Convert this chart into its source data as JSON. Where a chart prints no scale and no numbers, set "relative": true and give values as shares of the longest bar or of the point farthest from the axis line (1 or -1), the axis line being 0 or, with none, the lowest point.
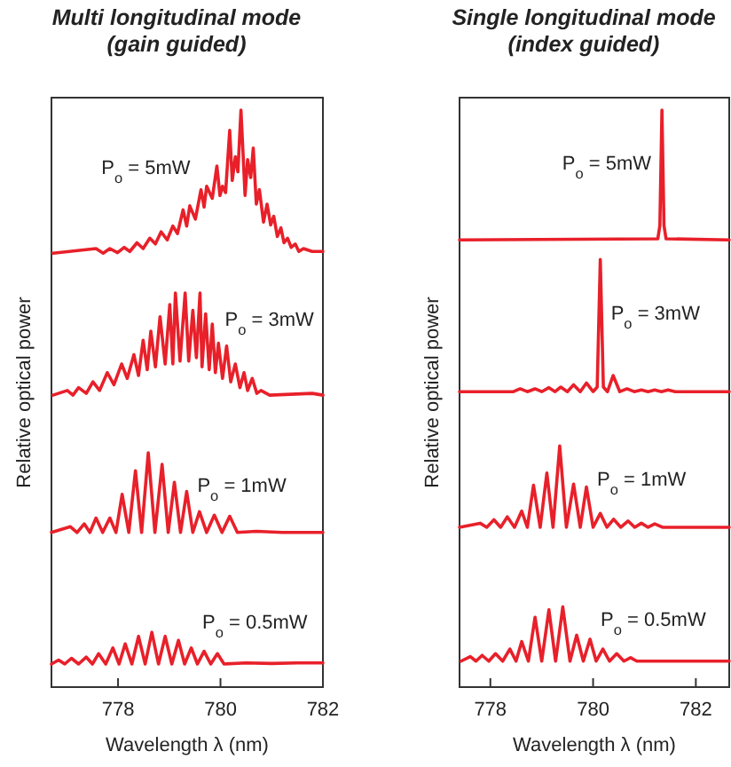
{
  "chart_data": [
    {
      "type": "line",
      "title": "Multi longitudinal mode\n(gain guided)",
      "xlabel": "Wavelength λ (nm)",
      "ylabel": "Relative optical power",
      "relative": true,
      "xlim": [
        776.7,
        782
      ],
      "xticks": [
        778,
        780,
        782
      ],
      "series": [
        {
          "name": "P$_{o}$ = 5mW",
          "color": "#e8202a",
          "x": [
            776.73,
            777.57,
            777.71,
            777.84,
            777.99,
            778.12,
            778.23,
            778.37,
            778.49,
            778.62,
            778.73,
            778.84,
            778.96,
            779.07,
            779.16,
            779.27,
            779.34,
            779.4,
            779.51,
            779.62,
            779.68,
            779.73,
            779.84,
            779.93,
            779.99,
            780.04,
            780.1,
            780.18,
            780.23,
            780.29,
            780.34,
            780.4,
            780.48,
            780.53,
            780.59,
            780.64,
            780.7,
            780.76,
            780.84,
            780.91,
            780.98,
            781.04,
            781.11,
            781.18,
            781.24,
            781.31,
            781.38,
            781.46,
            781.53,
            781.62,
            781.79,
            782
          ],
          "values": [
            0.752,
            0.76,
            0.752,
            0.76,
            0.753,
            0.762,
            0.755,
            0.77,
            0.76,
            0.778,
            0.768,
            0.789,
            0.775,
            0.799,
            0.786,
            0.827,
            0.799,
            0.834,
            0.811,
            0.862,
            0.832,
            0.868,
            0.847,
            0.903,
            0.852,
            0.868,
            0.857,
            0.965,
            0.878,
            0.919,
            0.893,
            1,
            0.852,
            0.914,
            0.883,
            0.934,
            0.837,
            0.862,
            0.806,
            0.837,
            0.801,
            0.816,
            0.781,
            0.796,
            0.77,
            0.778,
            0.762,
            0.768,
            0.755,
            0.76,
            0.755,
            0.755
          ]
        },
        {
          "name": "P$_{o}$ = 3mW",
          "color": "#e8202a",
          "x": [
            776.73,
            777.01,
            777.12,
            777.23,
            777.38,
            777.51,
            777.64,
            777.79,
            777.92,
            778.07,
            778.18,
            778.31,
            778.4,
            778.49,
            778.57,
            778.64,
            778.73,
            778.82,
            778.92,
            779.01,
            779.07,
            779.12,
            779.21,
            779.31,
            779.38,
            779.46,
            779.53,
            779.6,
            779.64,
            779.71,
            779.78,
            779.84,
            779.9,
            779.96,
            780.04,
            780.12,
            780.2,
            780.29,
            780.38,
            780.46,
            780.53,
            780.62,
            780.71,
            780.79,
            780.96,
            781.79,
            782
          ],
          "values": [
            0.506,
            0.514,
            0.506,
            0.519,
            0.509,
            0.529,
            0.514,
            0.545,
            0.524,
            0.56,
            0.535,
            0.576,
            0.54,
            0.601,
            0.55,
            0.617,
            0.555,
            0.642,
            0.56,
            0.663,
            0.56,
            0.683,
            0.565,
            0.683,
            0.565,
            0.653,
            0.571,
            0.683,
            0.555,
            0.647,
            0.55,
            0.629,
            0.545,
            0.596,
            0.535,
            0.591,
            0.529,
            0.56,
            0.519,
            0.545,
            0.514,
            0.535,
            0.509,
            0.514,
            0.506,
            0.509,
            0.506
          ]
        },
        {
          "name": "P$_{o}$ = 1mW",
          "color": "#e8202a",
          "x": [
            776.7,
            777.07,
            777.2,
            777.34,
            777.45,
            777.57,
            777.7,
            777.84,
            777.96,
            778.08,
            778.21,
            778.34,
            778.46,
            778.59,
            778.72,
            778.86,
            778.98,
            779.1,
            779.22,
            779.34,
            779.46,
            779.59,
            779.73,
            779.88,
            780.03,
            780.18,
            780.33,
            780.7,
            781.2,
            782
          ],
          "values": [
            0.268,
            0.278,
            0.268,
            0.283,
            0.268,
            0.293,
            0.268,
            0.293,
            0.268,
            0.334,
            0.268,
            0.375,
            0.268,
            0.406,
            0.268,
            0.386,
            0.268,
            0.355,
            0.268,
            0.339,
            0.268,
            0.304,
            0.268,
            0.298,
            0.268,
            0.296,
            0.268,
            0.27,
            0.268,
            0.268
          ]
        },
        {
          "name": "P$_{o}$ = 0.5mW",
          "color": "#e8202a",
          "x": [
            776.7,
            776.84,
            776.96,
            777.09,
            777.23,
            777.38,
            777.5,
            777.62,
            777.76,
            777.9,
            778.02,
            778.14,
            778.27,
            778.4,
            778.53,
            778.66,
            778.79,
            778.92,
            779.05,
            779.18,
            779.3,
            779.43,
            779.55,
            779.68,
            779.81,
            779.94,
            780.07,
            780.5,
            781,
            781.5,
            782
          ],
          "values": [
            0.04,
            0.047,
            0.04,
            0.05,
            0.04,
            0.052,
            0.04,
            0.058,
            0.04,
            0.068,
            0.04,
            0.075,
            0.04,
            0.088,
            0.04,
            0.095,
            0.04,
            0.088,
            0.04,
            0.081,
            0.04,
            0.068,
            0.04,
            0.062,
            0.04,
            0.058,
            0.04,
            0.042,
            0.041,
            0.042,
            0.042
          ]
        }
      ]
    },
    {
      "type": "line",
      "title": "Single longitudinal mode\n(index guided)",
      "xlabel": "Wavelength λ (nm)",
      "ylabel": "Relative optical power",
      "relative": true,
      "xlim": [
        777.4,
        782.65
      ],
      "xticks": [
        778,
        780,
        782
      ],
      "series": [
        {
          "name": "P$_{o}$ = 5mW",
          "color": "#e8202a",
          "x": [
            777.4,
            781.26,
            781.3,
            781.34,
            781.38,
            781.42,
            782.65
          ],
          "values": [
            0.775,
            0.777,
            0.8,
            1,
            0.8,
            0.777,
            0.775
          ]
        },
        {
          "name": "P$_{o}$ = 3mW",
          "color": "#e8202a",
          "x": [
            777.4,
            778.45,
            778.58,
            778.72,
            778.87,
            779,
            779.14,
            779.26,
            779.37,
            779.5,
            779.62,
            779.75,
            779.87,
            780,
            780.08,
            780.14,
            780.2,
            780.28,
            780.39,
            780.52,
            780.66,
            780.8,
            780.94,
            781.07,
            781.2,
            781.33,
            781.46,
            781.6,
            782.65
          ],
          "values": [
            0.512,
            0.512,
            0.517,
            0.512,
            0.517,
            0.512,
            0.519,
            0.512,
            0.52,
            0.512,
            0.524,
            0.512,
            0.527,
            0.512,
            0.52,
            0.741,
            0.52,
            0.512,
            0.54,
            0.512,
            0.517,
            0.512,
            0.515,
            0.512,
            0.515,
            0.512,
            0.515,
            0.512,
            0.512
          ]
        },
        {
          "name": "P$_{o}$ = 1mW",
          "color": "#e8202a",
          "x": [
            777.4,
            777.8,
            777.93,
            778.07,
            778.2,
            778.33,
            778.47,
            778.61,
            778.72,
            778.84,
            778.97,
            779.1,
            779.22,
            779.35,
            779.48,
            779.62,
            779.75,
            779.87,
            780,
            780.14,
            780.27,
            780.4,
            780.54,
            780.68,
            780.81,
            780.94,
            781.07,
            781.2,
            781.35,
            782.65
          ],
          "values": [
            0.277,
            0.284,
            0.277,
            0.29,
            0.277,
            0.295,
            0.277,
            0.305,
            0.277,
            0.35,
            0.277,
            0.371,
            0.277,
            0.418,
            0.277,
            0.352,
            0.277,
            0.347,
            0.277,
            0.301,
            0.277,
            0.291,
            0.277,
            0.288,
            0.277,
            0.284,
            0.277,
            0.283,
            0.277,
            0.277
          ]
        },
        {
          "name": "P$_{o}$ = 0.5mW",
          "color": "#e8202a",
          "x": [
            777.43,
            777.61,
            777.72,
            777.84,
            777.97,
            778.1,
            778.24,
            778.38,
            778.5,
            778.61,
            778.74,
            778.87,
            779,
            779.14,
            779.27,
            779.41,
            779.55,
            779.68,
            779.81,
            779.94,
            780.06,
            780.19,
            780.32,
            780.46,
            780.6,
            780.73,
            780.85,
            782.65
          ],
          "values": [
            0.045,
            0.053,
            0.045,
            0.055,
            0.045,
            0.058,
            0.045,
            0.066,
            0.045,
            0.079,
            0.045,
            0.121,
            0.045,
            0.134,
            0.045,
            0.139,
            0.045,
            0.09,
            0.045,
            0.083,
            0.045,
            0.066,
            0.045,
            0.058,
            0.045,
            0.051,
            0.045,
            0.045
          ]
        }
      ]
    }
  ]
}
